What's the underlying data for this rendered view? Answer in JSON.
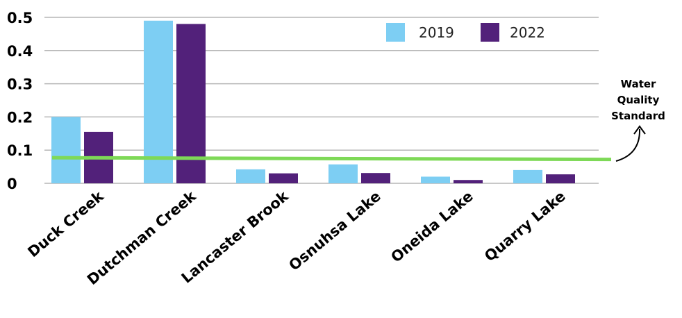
{
  "chart_data": {
    "type": "bar",
    "categories": [
      "Duck Creek",
      "Dutchman Creek",
      "Lancaster Brook",
      "Osnuhsa Lake",
      "Oneida Lake",
      "Quarry Lake"
    ],
    "series": [
      {
        "name": "2019",
        "color": "#7dcef3",
        "values": [
          0.2,
          0.49,
          0.042,
          0.057,
          0.02,
          0.04
        ]
      },
      {
        "name": "2022",
        "color": "#52217a",
        "values": [
          0.155,
          0.48,
          0.03,
          0.031,
          0.01,
          0.027
        ]
      }
    ],
    "yticks": [
      "0",
      "0.1",
      "0.2",
      "0.3",
      "0.4",
      "0.5"
    ],
    "ylim": [
      0,
      0.5
    ],
    "grid": true,
    "legend_position": "top-right",
    "reference_line": {
      "value": 0.075,
      "color": "#7ed957"
    },
    "annotation": {
      "lines": [
        "Water",
        "Quality",
        "Standard"
      ]
    }
  }
}
